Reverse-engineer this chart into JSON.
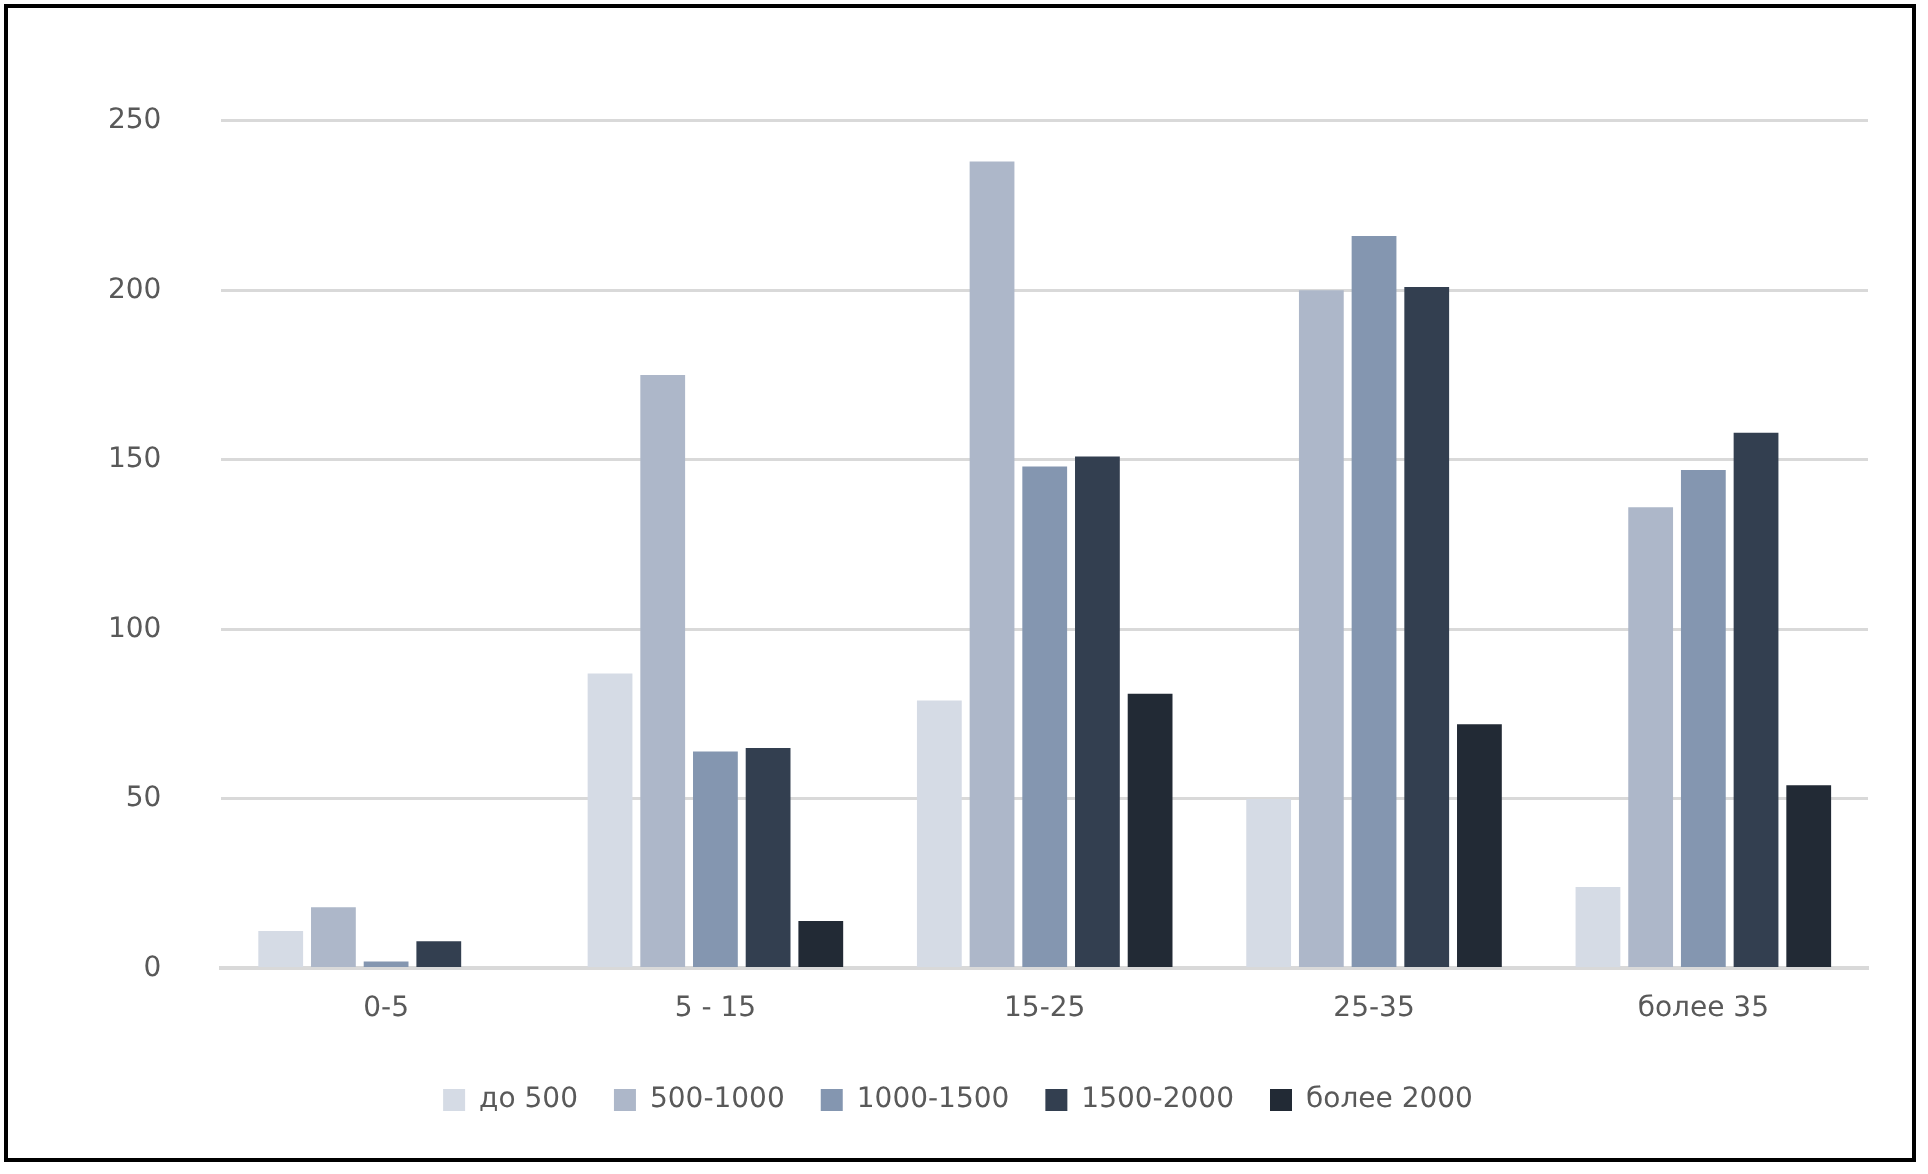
{
  "chart_data": {
    "type": "bar",
    "categories": [
      "0-5",
      "5 - 15",
      "15-25",
      "25-35",
      "более 35"
    ],
    "series": [
      {
        "name": "до 500",
        "color": "#d5dbe5",
        "values": [
          11,
          87,
          79,
          50,
          24
        ]
      },
      {
        "name": "500-1000",
        "color": "#adb7c9",
        "values": [
          18,
          175,
          238,
          200,
          136
        ]
      },
      {
        "name": "1000-1500",
        "color": "#8496b0",
        "values": [
          2,
          64,
          148,
          216,
          147
        ]
      },
      {
        "name": "1500-2000",
        "color": "#333f50",
        "values": [
          8,
          65,
          151,
          201,
          158
        ]
      },
      {
        "name": "более 2000",
        "color": "#222a35",
        "values": [
          0,
          14,
          81,
          72,
          54
        ]
      }
    ],
    "ylim": [
      0,
      250
    ],
    "yticks": [
      0,
      50,
      100,
      150,
      200,
      250
    ],
    "grid": "y",
    "legend": "bottom"
  }
}
